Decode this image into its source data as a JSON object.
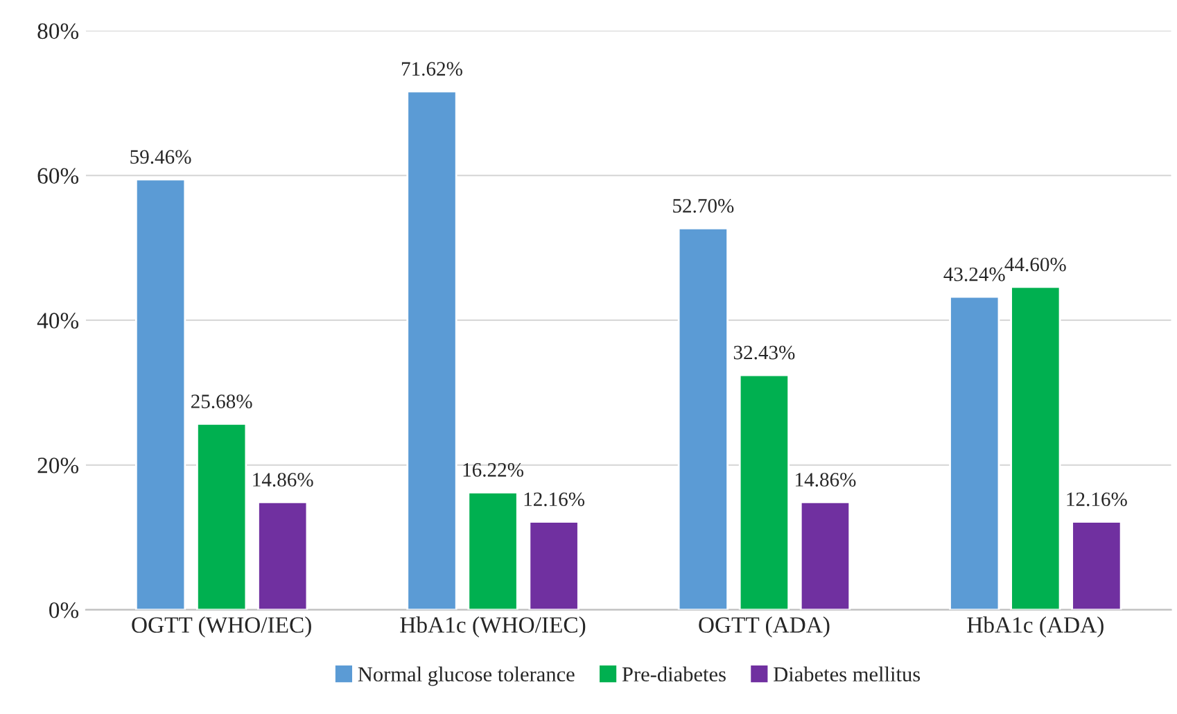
{
  "chart_data": {
    "type": "bar",
    "categories": [
      "OGTT (WHO/IEC)",
      "HbA1c (WHO/IEC)",
      "OGTT (ADA)",
      "HbA1c (ADA)"
    ],
    "series": [
      {
        "name": "Normal glucose tolerance",
        "color": "#5b9bd5",
        "values": [
          59.46,
          71.62,
          52.7,
          43.24
        ],
        "value_labels": [
          "59.46%",
          "71.62%",
          "52.70%",
          "43.24%"
        ]
      },
      {
        "name": "Pre-diabetes",
        "color": "#00b050",
        "values": [
          25.68,
          16.22,
          32.43,
          44.6
        ],
        "value_labels": [
          "25.68%",
          "16.22%",
          "32.43%",
          "44.60%"
        ]
      },
      {
        "name": "Diabetes mellitus",
        "color": "#7030a0",
        "values": [
          14.86,
          12.16,
          14.86,
          12.16
        ],
        "value_labels": [
          "14.86%",
          "12.16%",
          "14.86%",
          "12.16%"
        ]
      }
    ],
    "ylim": [
      0,
      80
    ],
    "yticks": [
      {
        "value": 0,
        "label": "0%"
      },
      {
        "value": 20,
        "label": "20%"
      },
      {
        "value": 40,
        "label": "40%"
      },
      {
        "value": 60,
        "label": "60%"
      },
      {
        "value": 80,
        "label": "80%"
      }
    ],
    "grid": "y",
    "legend": "bottom"
  }
}
